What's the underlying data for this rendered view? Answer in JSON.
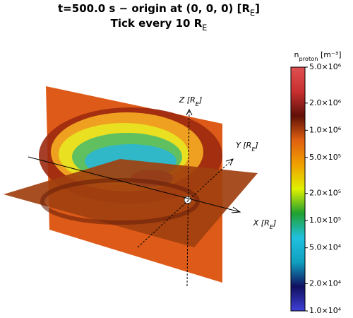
{
  "chart_data": {
    "type": "slice3d",
    "title": [
      "t=500.0 s − origin at (0, 0, 0) [R_E]",
      "Tick every 10 R_E"
    ],
    "axis_labels": {
      "x": "X [R_E]",
      "y": "Y [R_E]",
      "z": "Z [R_E]"
    },
    "colorbar": {
      "label": "n_{proton} [m⁻³]",
      "log": true,
      "clim": [
        10000,
        5000000
      ],
      "ticks": [
        {
          "value": 10000,
          "label": "1.0×10⁴"
        },
        {
          "value": 20000,
          "label": "2.0×10⁴"
        },
        {
          "value": 50000,
          "label": "5.0×10⁴"
        },
        {
          "value": 100000,
          "label": "1.0×10⁵"
        },
        {
          "value": 200000,
          "label": "2.0×10⁵"
        },
        {
          "value": 500000,
          "label": "5.0×10⁵"
        },
        {
          "value": 1000000,
          "label": "1.0×10⁶"
        },
        {
          "value": 2000000,
          "label": "2.0×10⁶"
        },
        {
          "value": 5000000,
          "label": "5.0×10⁶"
        }
      ],
      "colormap": [
        "#4040d8",
        "#101060",
        "#10a0c0",
        "#20c0e0",
        "#20a030",
        "#e0f000",
        "#f0a000",
        "#e06010",
        "#601008",
        "#c83030",
        "#e05050"
      ]
    }
  }
}
